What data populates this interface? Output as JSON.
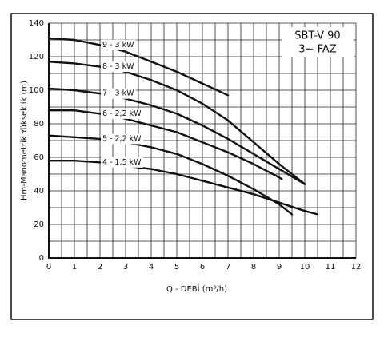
{
  "chart_data": {
    "type": "line",
    "xlabel": "Q - DEBİ (m³/h)",
    "ylabel": "Hm-Manometrik Yükseklik (m)",
    "annotation": [
      "SBT-V 90",
      "3~ FAZ"
    ],
    "xlim": [
      0,
      12
    ],
    "ylim": [
      0,
      140
    ],
    "xticks": [
      0,
      1,
      2,
      3,
      4,
      5,
      6,
      7,
      8,
      9,
      10,
      11,
      12
    ],
    "yticks": [
      0,
      20,
      40,
      60,
      80,
      100,
      120,
      140
    ],
    "xminorticks": [
      0.5,
      1.5,
      2.5,
      3.5,
      4.5,
      5.5,
      6.5,
      7.5,
      8.5,
      9.5,
      10.5,
      11.5
    ],
    "yminorticks": [
      10,
      30,
      50,
      70,
      90,
      110,
      130
    ],
    "grid": true,
    "series": [
      {
        "name": "9 - 3 kW",
        "color": "#111111",
        "x": [
          0,
          1,
          2,
          3,
          4,
          5,
          6,
          7
        ],
        "values": [
          131,
          130,
          127,
          123,
          117,
          111,
          104,
          97
        ]
      },
      {
        "name": "8 - 3 kW",
        "color": "#111111",
        "x": [
          0,
          1,
          2,
          3,
          4,
          5,
          6,
          7,
          8,
          9,
          10
        ],
        "values": [
          117,
          116,
          114,
          111,
          106,
          100,
          92,
          82,
          69,
          56,
          44
        ]
      },
      {
        "name": "7 - 3 kW",
        "color": "#111111",
        "x": [
          0,
          1,
          2,
          3,
          4,
          5,
          6,
          7,
          8,
          9,
          10
        ],
        "values": [
          101,
          100,
          98,
          95,
          91,
          86,
          79,
          71,
          62,
          53,
          44
        ]
      },
      {
        "name": "6 - 2,2 kW",
        "color": "#111111",
        "x": [
          0,
          1,
          2,
          3,
          4,
          5,
          6,
          7,
          8,
          9,
          9.1
        ],
        "values": [
          88,
          88,
          86,
          83,
          79,
          75,
          69,
          63,
          56,
          48,
          47
        ]
      },
      {
        "name": "5 - 2,2 kW",
        "color": "#111111",
        "x": [
          0,
          1,
          2,
          3,
          4,
          5,
          6,
          7,
          8,
          9,
          9.5
        ],
        "values": [
          73,
          72,
          71,
          69,
          66,
          62,
          56,
          49,
          41,
          32,
          26
        ]
      },
      {
        "name": "4 - 1,5 kW",
        "color": "#111111",
        "x": [
          0,
          1,
          2,
          3,
          4,
          5,
          6,
          7,
          8,
          9,
          10,
          10.5
        ],
        "values": [
          58,
          58,
          57,
          55,
          53,
          50,
          46,
          42,
          38,
          33,
          28,
          26
        ]
      }
    ]
  }
}
